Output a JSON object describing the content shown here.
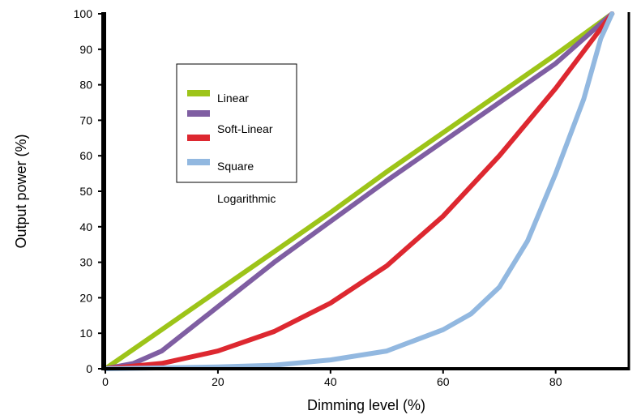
{
  "chart_data": {
    "type": "line",
    "xlabel": "Dimming level (%)",
    "ylabel": "Output power (%)",
    "xlim": [
      0,
      93
    ],
    "ylim": [
      0,
      100
    ],
    "xticks": [
      0,
      20,
      40,
      60,
      80
    ],
    "yticks": [
      0,
      10,
      20,
      30,
      40,
      50,
      60,
      70,
      80,
      90,
      100
    ],
    "grid": false,
    "legend": {
      "placement": "top-left",
      "labels": [
        "Linear",
        "Soft-Linear",
        "Square"
      ],
      "extra_label": "Logarithmic"
    },
    "series": [
      {
        "color": "#9dc419",
        "x": [
          0,
          10,
          20,
          30,
          40,
          50,
          60,
          70,
          80,
          90
        ],
        "y": [
          0,
          11,
          22,
          33,
          44,
          55.5,
          66.5,
          77.5,
          88.5,
          100
        ]
      },
      {
        "color": "#7f5ea2",
        "x": [
          0,
          5,
          10,
          20,
          30,
          40,
          50,
          60,
          70,
          80,
          90
        ],
        "y": [
          0,
          1.5,
          5,
          17.5,
          30,
          41.5,
          53,
          64,
          75,
          86,
          100
        ]
      },
      {
        "color": "#dd2830",
        "x": [
          0,
          10,
          20,
          30,
          40,
          50,
          60,
          70,
          80,
          90
        ],
        "y": [
          0,
          1.5,
          5,
          10.5,
          18.5,
          29,
          43,
          60,
          79,
          100
        ]
      },
      {
        "color": "#92b8e0",
        "x": [
          0,
          20,
          30,
          40,
          50,
          60,
          65,
          70,
          75,
          80,
          85,
          88,
          90
        ],
        "y": [
          0,
          0.5,
          1,
          2.5,
          5,
          11,
          15.5,
          23,
          36,
          55,
          76,
          93,
          100
        ]
      }
    ]
  }
}
